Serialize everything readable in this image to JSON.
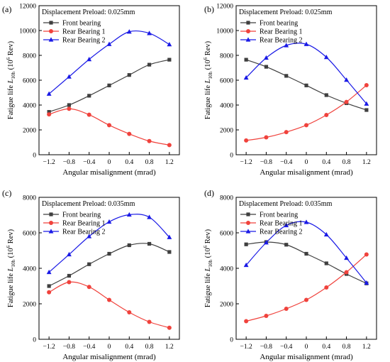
{
  "chart_data": [
    {
      "type": "line",
      "panel_label": "(a)",
      "annotation": "Displacement Preload: 0.025mm",
      "xlabel": "Angular misalignment (mrad)",
      "ylabel_prefix": "Fatigue life ",
      "ylabel_italic": "L",
      "ylabel_sub": "10h",
      "ylabel_suffix": " (10",
      "ylabel_sup": "6",
      "ylabel_end": " Rev)",
      "x_ticks": [
        "-1.2",
        "-0.8",
        "-0.4",
        "0",
        "0.4",
        "0.8",
        "1.2"
      ],
      "y_ticks": [
        "0",
        "2000",
        "4000",
        "6000",
        "8000",
        "10000",
        "12000"
      ],
      "xlim": [
        -1.4,
        1.4
      ],
      "ylim": [
        0,
        12000
      ],
      "legend_position": "top-left",
      "x": [
        -1.2,
        -0.8,
        -0.4,
        0,
        0.4,
        0.8,
        1.2
      ],
      "series": [
        {
          "name": "Front bearing",
          "color": "#3f3f3f",
          "marker": "square",
          "values": [
            3450,
            4000,
            4750,
            5580,
            6420,
            7250,
            7650
          ]
        },
        {
          "name": "Rear Bearing 1",
          "color": "#f0423c",
          "marker": "circle",
          "values": [
            3250,
            3700,
            3220,
            2380,
            1680,
            1100,
            780
          ]
        },
        {
          "name": "Rear Bearing 2",
          "color": "#1a1ae6",
          "marker": "triangle",
          "values": [
            4900,
            6280,
            7680,
            8900,
            9900,
            9780,
            8880
          ]
        }
      ]
    },
    {
      "type": "line",
      "panel_label": "(b)",
      "annotation": "Displacement Preload: 0.025mm",
      "xlabel": "Angular misalignment (mrad)",
      "ylabel_prefix": "Fatigue life ",
      "ylabel_italic": "L",
      "ylabel_sub": "10h",
      "ylabel_suffix": " (10",
      "ylabel_sup": "6",
      "ylabel_end": " Rev)",
      "x_ticks": [
        "-1.2",
        "-0.8",
        "-0.4",
        "0",
        "0.4",
        "0.8",
        "1.2"
      ],
      "y_ticks": [
        "0",
        "2000",
        "4000",
        "6000",
        "8000",
        "10000",
        "12000"
      ],
      "xlim": [
        -1.4,
        1.4
      ],
      "ylim": [
        0,
        12000
      ],
      "legend_position": "top-left",
      "x": [
        -1.2,
        -0.8,
        -0.4,
        0,
        0.4,
        0.8,
        1.2
      ],
      "series": [
        {
          "name": "Front bearing",
          "color": "#3f3f3f",
          "marker": "square",
          "values": [
            7650,
            7080,
            6350,
            5580,
            4800,
            4150,
            3600
          ]
        },
        {
          "name": "Rear Bearing 1",
          "color": "#f0423c",
          "marker": "circle",
          "values": [
            1150,
            1400,
            1820,
            2380,
            3200,
            4250,
            5600
          ]
        },
        {
          "name": "Rear Bearing 2",
          "color": "#1a1ae6",
          "marker": "triangle",
          "values": [
            6200,
            7800,
            8800,
            8900,
            7850,
            6020,
            4100
          ]
        }
      ]
    },
    {
      "type": "line",
      "panel_label": "(c)",
      "annotation": "Displacement Preload: 0.035mm",
      "xlabel": "Angular misalignment (mrad)",
      "ylabel_prefix": "Fatigue life ",
      "ylabel_italic": "L",
      "ylabel_sub": "10h",
      "ylabel_suffix": " (10",
      "ylabel_sup": "6",
      "ylabel_end": " Rev)",
      "x_ticks": [
        "-1.2",
        "-0.8",
        "-0.4",
        "0",
        "0.4",
        "0.8",
        "1.2"
      ],
      "y_ticks": [
        "0",
        "2000",
        "4000",
        "6000",
        "8000"
      ],
      "xlim": [
        -1.4,
        1.4
      ],
      "ylim": [
        0,
        8000
      ],
      "legend_position": "top-left",
      "x": [
        -1.2,
        -0.8,
        -0.4,
        0,
        0.4,
        0.8,
        1.2
      ],
      "series": [
        {
          "name": "Front bearing",
          "color": "#3f3f3f",
          "marker": "square",
          "values": [
            3000,
            3580,
            4230,
            4820,
            5300,
            5380,
            4920
          ]
        },
        {
          "name": "Rear Bearing 1",
          "color": "#f0423c",
          "marker": "circle",
          "values": [
            2650,
            3220,
            2950,
            2220,
            1520,
            980,
            650
          ]
        },
        {
          "name": "Rear Bearing 2",
          "color": "#1a1ae6",
          "marker": "triangle",
          "values": [
            3780,
            4780,
            5800,
            6620,
            7020,
            6880,
            5750
          ]
        }
      ]
    },
    {
      "type": "line",
      "panel_label": "(d)",
      "annotation": "Displacement Preload: 0.035mm",
      "xlabel": "Angular misalignment (mrad)",
      "ylabel_prefix": "Fatigue life ",
      "ylabel_italic": "L",
      "ylabel_sub": "10h",
      "ylabel_suffix": " (10",
      "ylabel_sup": "6",
      "ylabel_end": " Rev)",
      "x_ticks": [
        "-1.2",
        "-0.8",
        "-0.4",
        "0",
        "0.4",
        "0.8",
        "1.2"
      ],
      "y_ticks": [
        "0",
        "2000",
        "4000",
        "6000",
        "8000"
      ],
      "xlim": [
        -1.4,
        1.4
      ],
      "ylim": [
        0,
        8000
      ],
      "legend_position": "top-left",
      "x": [
        -1.2,
        -0.8,
        -0.4,
        0,
        0.4,
        0.8,
        1.2
      ],
      "series": [
        {
          "name": "Front bearing",
          "color": "#3f3f3f",
          "marker": "square",
          "values": [
            5350,
            5480,
            5330,
            4820,
            4280,
            3680,
            3150
          ]
        },
        {
          "name": "Rear Bearing 1",
          "color": "#f0423c",
          "marker": "circle",
          "values": [
            1020,
            1320,
            1720,
            2220,
            2920,
            3780,
            4780
          ]
        },
        {
          "name": "Rear Bearing 2",
          "color": "#1a1ae6",
          "marker": "triangle",
          "values": [
            4180,
            5450,
            6420,
            6600,
            5900,
            4580,
            3180
          ]
        }
      ]
    }
  ]
}
